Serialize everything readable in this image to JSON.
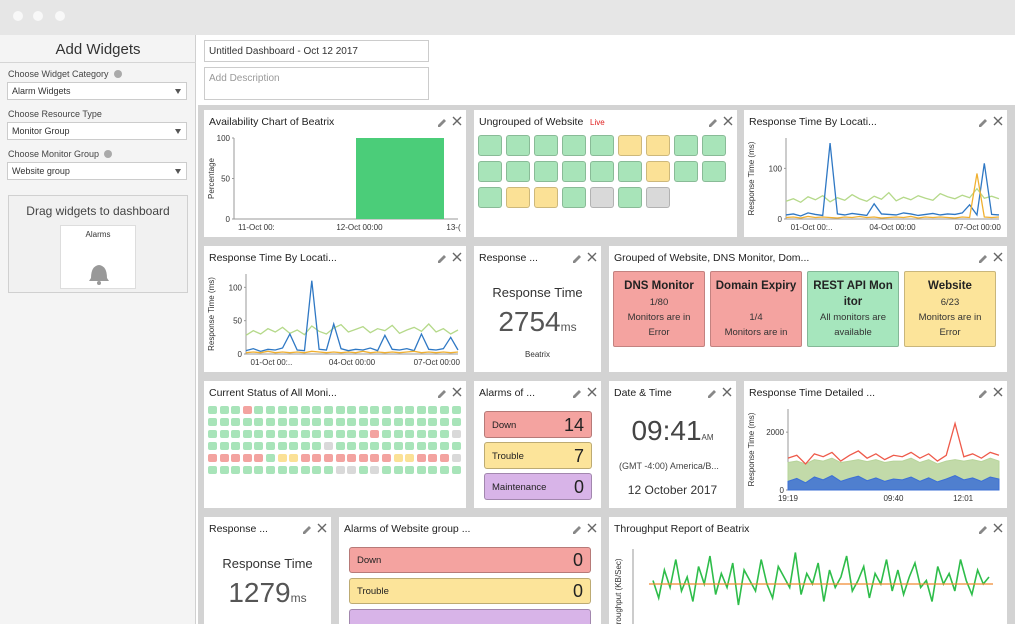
{
  "sidebar": {
    "title": "Add Widgets",
    "fields": [
      {
        "label": "Choose Widget Category",
        "value": "Alarm Widgets",
        "info": true
      },
      {
        "label": "Choose Resource Type",
        "value": "Monitor Group",
        "info": false
      },
      {
        "label": "Choose Monitor Group",
        "value": "Website group",
        "info": true
      }
    ],
    "drop_zone": {
      "title": "Drag widgets to dashboard",
      "card_label": "Alarms"
    }
  },
  "dashboard": {
    "name": "Untitled Dashboard - Oct 12 2017",
    "description_placeholder": "Add Description"
  },
  "status_colors": {
    "g": "#a8e4b9",
    "r": "#f3a3a0",
    "y": "#fbe196",
    "s": "#d9d9d9"
  },
  "widgets": {
    "availability": {
      "title": "Availability Chart of Beatrix",
      "y_label": "Percentage",
      "ylim": [
        0,
        100
      ],
      "yticks": [
        0,
        50,
        100
      ],
      "x_labels": [
        "11-Oct 00:",
        "12-Oct 00:00",
        "13-("
      ],
      "values": [
        0,
        100
      ],
      "color": "#4bcd79"
    },
    "ungrouped": {
      "title": "Ungrouped of Website",
      "badge": "Live",
      "rows": [
        "gggggyygg",
        "ggggggygg",
        "gyygsgs"
      ]
    },
    "rt_location_1": {
      "title": "Response Time By Locati...",
      "y_label": "Response Time (ms)",
      "ylim": [
        0,
        160
      ],
      "yticks": [
        0,
        100
      ],
      "x_labels": [
        "01-Oct 00:..",
        "04-Oct 00:00",
        "07-Oct 00:00"
      ],
      "series": [
        {
          "color": "#b5d98a",
          "values": [
            35,
            40,
            33,
            44,
            38,
            46,
            34,
            42,
            37,
            48,
            40,
            35,
            45,
            39,
            52,
            36,
            43,
            38,
            46,
            41,
            37,
            50,
            44,
            40,
            47,
            42,
            60,
            41,
            45,
            40
          ]
        },
        {
          "color": "#2f78c4",
          "values": [
            8,
            10,
            6,
            12,
            9,
            7,
            150,
            10,
            8,
            11,
            9,
            7,
            30,
            10,
            9,
            8,
            12,
            10,
            7,
            9,
            11,
            8,
            10,
            9,
            12,
            28,
            8,
            110,
            9,
            8
          ]
        },
        {
          "color": "#f0b030",
          "values": [
            3,
            4,
            2,
            5,
            3,
            4,
            3,
            2,
            4,
            3,
            5,
            3,
            4,
            2,
            3,
            4,
            3,
            5,
            2,
            4,
            3,
            4,
            3,
            2,
            4,
            3,
            90,
            4,
            3,
            4
          ]
        }
      ]
    },
    "rt_location_2": {
      "title": "Response Time By Locati...",
      "y_label": "Response Time (ms)",
      "ylim": [
        0,
        120
      ],
      "yticks": [
        0,
        50,
        100
      ],
      "x_labels": [
        "01-Oct 00:..",
        "04-Oct 00:00",
        "07-Oct 00:00"
      ],
      "series": [
        {
          "color": "#b5d98a",
          "values": [
            28,
            35,
            30,
            38,
            33,
            40,
            31,
            36,
            29,
            42,
            34,
            30,
            39,
            44,
            33,
            37,
            41,
            32,
            38,
            35,
            43,
            31,
            36,
            40,
            34,
            45,
            33,
            38,
            30,
            36
          ]
        },
        {
          "color": "#2f78c4",
          "values": [
            5,
            8,
            4,
            7,
            6,
            9,
            30,
            6,
            5,
            110,
            7,
            6,
            45,
            8,
            5,
            7,
            6,
            9,
            5,
            28,
            7,
            6,
            8,
            5,
            30,
            7,
            6,
            8,
            25,
            6
          ]
        },
        {
          "color": "#f0b030",
          "values": [
            2,
            3,
            2,
            4,
            2,
            3,
            2,
            3,
            2,
            4,
            3,
            2,
            3,
            2,
            3,
            2,
            4,
            2,
            3,
            2,
            3,
            2,
            3,
            4,
            2,
            3,
            2,
            3,
            2,
            3
          ]
        }
      ]
    },
    "rt_value_1": {
      "title": "Response ...",
      "label": "Response Time",
      "value": "2754",
      "unit": "ms",
      "monitor": "Beatrix"
    },
    "grouped": {
      "title": "Grouped of Website, DNS Monitor, Dom...",
      "cards": [
        {
          "name": "DNS Monitor",
          "count": "1/80",
          "status": "Monitors are in Error",
          "color": "#f4a3a0"
        },
        {
          "name": "Domain Expiry",
          "count": "1/4",
          "status": "Monitors are in",
          "color": "#f4a3a0"
        },
        {
          "name": "REST API Monitor",
          "status": "All monitors are available",
          "color": "#a6e6bd"
        },
        {
          "name": "Website",
          "count": "6/23",
          "status": "Monitors are in Error",
          "color": "#fce49a"
        }
      ]
    },
    "current_status": {
      "title": "Current Status of All Moni...",
      "rows": [
        "gggrgggggggggggggggggg",
        "gggggggggggggggggggggg",
        "ggggggggggggggrggggggs",
        "ggggggggggsggggggggggg",
        "rrrrrgyyrrrrrrrryyrrrs",
        "gggggggggggssgsggggggg"
      ]
    },
    "alarms_1": {
      "title": "Alarms of ...",
      "items": [
        {
          "label": "Down",
          "count": "14",
          "color": "#f4a3a0"
        },
        {
          "label": "Trouble",
          "count": "7",
          "color": "#fce49a"
        },
        {
          "label": "Maintenance",
          "count": "0",
          "color": "#d8b4e8"
        }
      ]
    },
    "datetime": {
      "title": "Date & Time",
      "time": "09:41",
      "ampm": "AM",
      "zone": "(GMT -4:00) America/B...",
      "date": "12 October 2017"
    },
    "rt_detailed": {
      "title": "Response Time Detailed ...",
      "y_label": "Response Time (ms)",
      "ylim": [
        0,
        2800
      ],
      "yticks": [
        0,
        2000
      ],
      "x_labels": [
        "19:19",
        "09:40",
        "12:01"
      ],
      "series": [
        {
          "color": "#b7d49a",
          "area": true,
          "values": [
            950,
            1000,
            900,
            1050,
            1000,
            1100,
            950,
            1000,
            1050,
            980,
            1050,
            950,
            1000,
            1000,
            1100,
            950,
            1050,
            900,
            1000,
            1050,
            1000,
            1050,
            980,
            1100,
            1000
          ]
        },
        {
          "color": "#3b6fd6",
          "area": true,
          "values": [
            300,
            400,
            250,
            450,
            350,
            500,
            300,
            400,
            480,
            320,
            420,
            300,
            380,
            350,
            450,
            300,
            420,
            280,
            380,
            500,
            350,
            420,
            300,
            450,
            380
          ]
        },
        {
          "color": "#ee5a4a",
          "values": [
            1100,
            1200,
            900,
            1250,
            1150,
            1300,
            1000,
            1200,
            1350,
            1100,
            1250,
            1050,
            1200,
            1150,
            1300,
            1100,
            1250,
            1000,
            1200,
            2300,
            1150,
            1250,
            1100,
            1300,
            1200
          ]
        }
      ]
    },
    "rt_value_2": {
      "title": "Response ...",
      "label": "Response Time",
      "value": "1279",
      "unit": "ms"
    },
    "alarms_2": {
      "title": "Alarms of Website group ...",
      "items": [
        {
          "label": "Down",
          "count": "0",
          "color": "#f4a3a0"
        },
        {
          "label": "Trouble",
          "count": "0",
          "color": "#fce49a"
        },
        {
          "color": "#d8b4e8"
        }
      ]
    },
    "throughput": {
      "title": "Throughput Report of Beatrix",
      "y_label": "Throughput (KB/Sec)",
      "ylim": [
        0,
        100
      ],
      "average": 50,
      "average_color": "#f08a30",
      "color": "#2ebd4a",
      "values": [
        55,
        30,
        70,
        45,
        85,
        40,
        60,
        25,
        75,
        50,
        90,
        35,
        65,
        45,
        80,
        20,
        70,
        55,
        40,
        85,
        50,
        30,
        75,
        60,
        45,
        95,
        35,
        65,
        50,
        80,
        25,
        70,
        45,
        60,
        90,
        40,
        55,
        75,
        30,
        65,
        50,
        85,
        40,
        70,
        35,
        60,
        80,
        45,
        55,
        25,
        75,
        50,
        65,
        40,
        85,
        55,
        35,
        70,
        50,
        60
      ]
    }
  }
}
